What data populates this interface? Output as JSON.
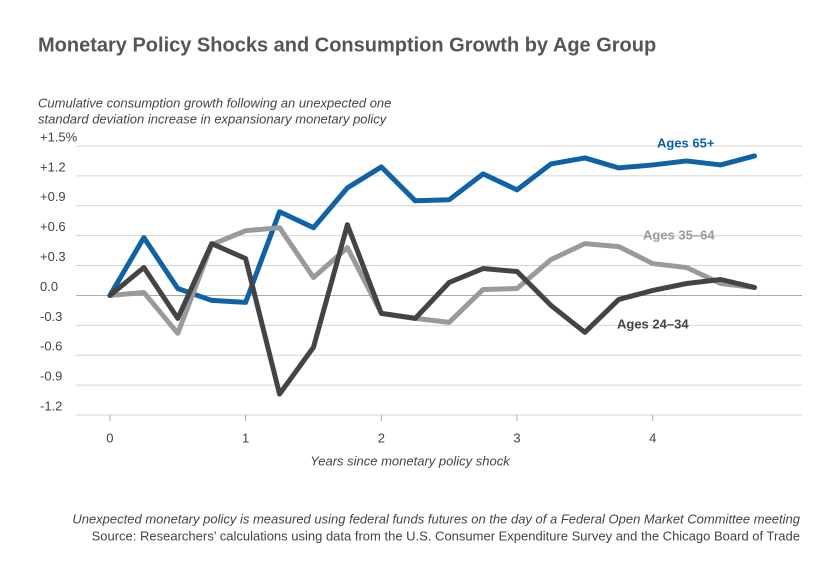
{
  "chart_data": {
    "type": "line",
    "title": "Monetary Policy Shocks and Consumption Growth by Age Group",
    "subtitle": [
      "Cumulative consumption growth following an unexpected one",
      "standard deviation increase in expansionary monetary policy"
    ],
    "x_label": "Years since monetary policy shock",
    "notes": [
      "Unexpected monetary policy is measured using federal funds futures on the day of a Federal Open Market Committee meeting",
      "Source: Researchers’ calculations using data from the U.S. Consumer Expenditure Survey and the Chicago Board of Trade"
    ],
    "x": [
      0,
      0.25,
      0.5,
      0.75,
      1,
      1.25,
      1.5,
      1.75,
      2,
      2.25,
      2.5,
      2.75,
      3,
      3.25,
      3.5,
      3.75,
      4,
      4.25,
      4.5,
      4.75
    ],
    "xlim": [
      -0.25,
      5.1
    ],
    "xticks": [
      0,
      1,
      2,
      3,
      4
    ],
    "ylim": [
      -1.2,
      1.5
    ],
    "yticks": [
      {
        "value": -1.2,
        "label": "-1.2"
      },
      {
        "value": -0.9,
        "label": "-0.9"
      },
      {
        "value": -0.6,
        "label": "-0.6"
      },
      {
        "value": -0.3,
        "label": "-0.3"
      },
      {
        "value": 0,
        "label": "0.0"
      },
      {
        "value": 0.3,
        "label": "+0.3"
      },
      {
        "value": 0.6,
        "label": "+0.6"
      },
      {
        "value": 0.9,
        "label": "+0.9"
      },
      {
        "value": 1.2,
        "label": "+1.2"
      },
      {
        "value": 1.5,
        "label": "+1.5%"
      }
    ],
    "grid": true,
    "series": [
      {
        "name": "Ages 65+",
        "color": "#0f62a6",
        "values": [
          0,
          0.58,
          0.07,
          -0.05,
          -0.07,
          0.84,
          0.68,
          1.08,
          1.29,
          0.95,
          0.96,
          1.22,
          1.06,
          1.32,
          1.38,
          1.28,
          1.31,
          1.35,
          1.31,
          1.4
        ]
      },
      {
        "name": "Ages 35–64",
        "color": "#9a9a9a",
        "values": [
          0,
          0.03,
          -0.38,
          0.51,
          0.65,
          0.68,
          0.18,
          0.48,
          -0.18,
          -0.23,
          -0.27,
          0.06,
          0.07,
          0.36,
          0.52,
          0.49,
          0.32,
          0.28,
          0.12,
          0.08
        ]
      },
      {
        "name": "Ages 24–34",
        "color": "#444444",
        "values": [
          0,
          0.28,
          -0.23,
          0.52,
          0.37,
          -0.99,
          -0.52,
          0.71,
          -0.18,
          -0.23,
          0.13,
          0.27,
          0.24,
          -0.1,
          -0.37,
          -0.04,
          0.05,
          0.12,
          0.16,
          0.08
        ]
      }
    ]
  }
}
